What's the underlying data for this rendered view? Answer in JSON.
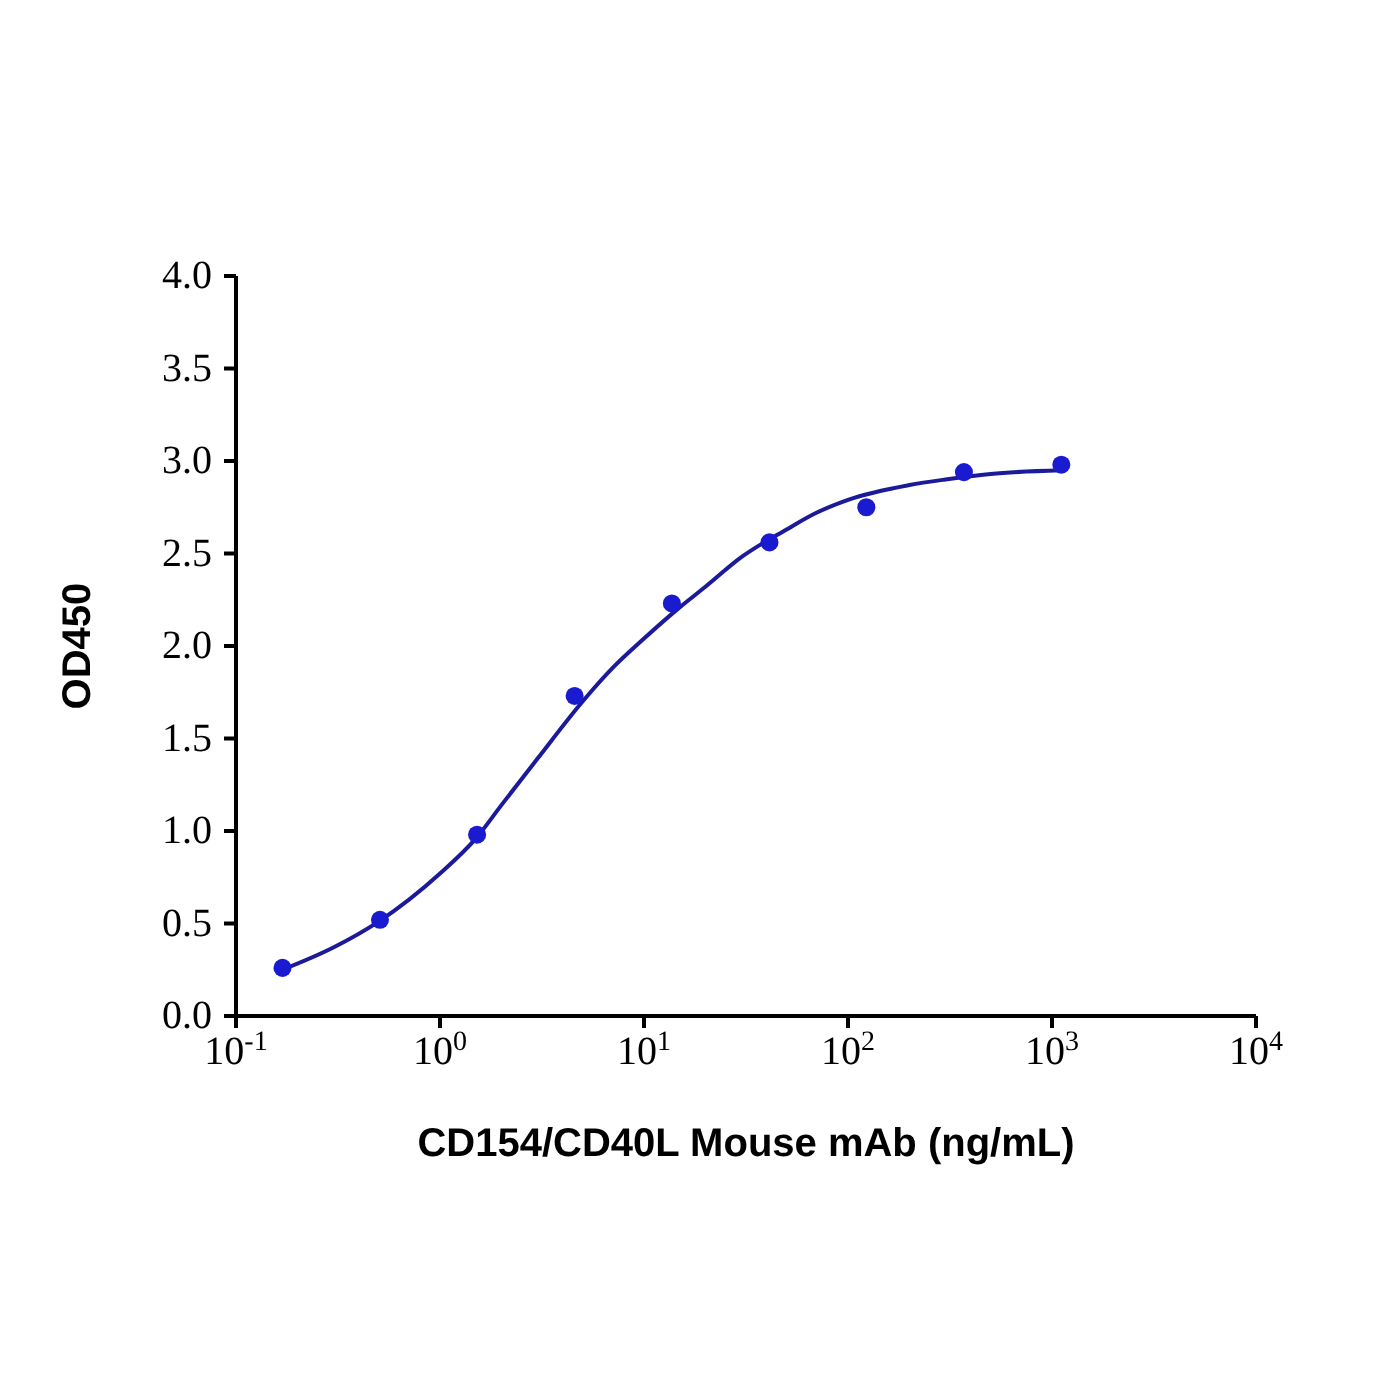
{
  "chart_data": {
    "type": "scatter",
    "xlabel": "CD154/CD40L Mouse mAb (ng/mL)",
    "ylabel": "OD450",
    "log": "x",
    "xlim": [
      0.1,
      10000
    ],
    "xticks": [
      {
        "value": 0.1,
        "label": "10$^{-1}$"
      },
      {
        "value": 1,
        "label": "10$^{0}$"
      },
      {
        "value": 10,
        "label": "10$^{1}$"
      },
      {
        "value": 100,
        "label": "10$^{2}$"
      },
      {
        "value": 1000,
        "label": "10$^{3}$"
      },
      {
        "value": 10000,
        "label": "10$^{4}$"
      }
    ],
    "ylim": [
      0,
      4
    ],
    "yticks": [
      {
        "value": 0,
        "label": "0.0"
      },
      {
        "value": 0.5,
        "label": "0.5"
      },
      {
        "value": 1,
        "label": "1.0"
      },
      {
        "value": 1.5,
        "label": "1.5"
      },
      {
        "value": 2,
        "label": "2.0"
      },
      {
        "value": 2.5,
        "label": "2.5"
      },
      {
        "value": 3,
        "label": "3.0"
      },
      {
        "value": 3.5,
        "label": "3.5"
      },
      {
        "value": 4,
        "label": "4.0"
      }
    ],
    "grid": false,
    "marker": "circle",
    "series": [
      {
        "color": "#1a1ad0",
        "x": [
          0.169,
          0.508,
          1.52,
          4.57,
          13.7,
          41.2,
          123,
          370,
          1111
        ],
        "values": [
          0.26,
          0.52,
          0.98,
          1.73,
          2.23,
          2.56,
          2.75,
          2.94,
          2.98
        ]
      },
      {
        "type": "line",
        "color": "#1a1a9a",
        "marker": "none",
        "x": [
          0.169,
          0.3,
          0.5,
          1,
          1.5,
          2,
          3,
          5,
          7,
          10,
          15,
          20,
          30,
          50,
          70,
          100,
          200,
          300,
          500,
          1111
        ],
        "values": [
          0.25,
          0.37,
          0.51,
          0.77,
          0.96,
          1.14,
          1.39,
          1.7,
          1.88,
          2.04,
          2.21,
          2.32,
          2.48,
          2.63,
          2.72,
          2.79,
          2.87,
          2.9,
          2.93,
          2.95
        ]
      }
    ]
  }
}
